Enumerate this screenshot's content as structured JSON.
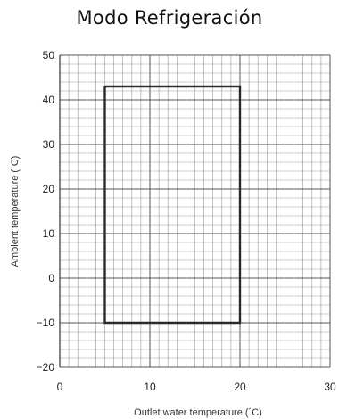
{
  "chart_data": {
    "type": "line",
    "title": "Modo Refrigeración",
    "xlabel": "Outlet water  temperature (´C)",
    "ylabel": "Ambient temperature (´C)",
    "xlim": [
      0,
      30
    ],
    "ylim": [
      -20,
      50
    ],
    "x_ticks": [
      "0",
      "10",
      "20",
      "30"
    ],
    "y_ticks": [
      "50",
      "40",
      "30",
      "20",
      "10",
      "0",
      "−10",
      "−20"
    ],
    "grid": true,
    "series": [
      {
        "x": [
          5,
          20,
          20,
          5,
          5
        ],
        "y": [
          43,
          43,
          -10,
          -10,
          43
        ],
        "color": "#2a2a2a"
      }
    ]
  }
}
